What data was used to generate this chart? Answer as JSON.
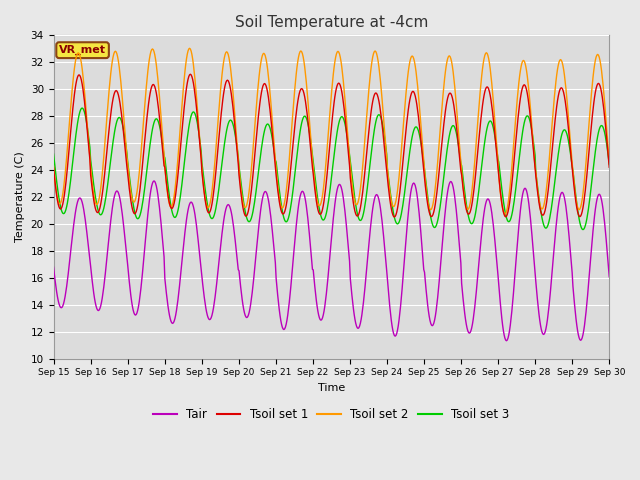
{
  "title": "Soil Temperature at -4cm",
  "xlabel": "Time",
  "ylabel": "Temperature (C)",
  "ylim": [
    10,
    34
  ],
  "background_color": "#dcdcdc",
  "grid_color": "#ffffff",
  "vr_label": "VR_met",
  "legend_labels": [
    "Tair",
    "Tsoil set 1",
    "Tsoil set 2",
    "Tsoil set 3"
  ],
  "line_colors": [
    "#bb00bb",
    "#dd0000",
    "#ff9900",
    "#00cc00"
  ],
  "x_tick_labels": [
    "Sep 15",
    "Sep 16",
    "Sep 17",
    "Sep 18",
    "Sep 19",
    "Sep 20",
    "Sep 21",
    "Sep 22",
    "Sep 23",
    "Sep 24",
    "Sep 25",
    "Sep 26",
    "Sep 27",
    "Sep 28",
    "Sep 29",
    "Sep 30"
  ],
  "n_days": 15,
  "pts_per_day": 48
}
